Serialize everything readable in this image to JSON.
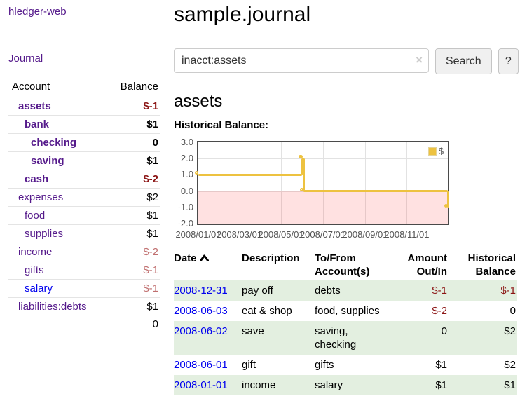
{
  "app": {
    "brand": "hledger-web"
  },
  "sidebar": {
    "journal_label": "Journal",
    "headers": {
      "account": "Account",
      "balance": "Balance"
    },
    "accounts": [
      {
        "name": "assets",
        "balance": "$-1",
        "level": 0,
        "bold": true,
        "neg": "strong",
        "link": "purple"
      },
      {
        "name": "bank",
        "balance": "$1",
        "level": 1,
        "bold": true,
        "neg": "none",
        "link": "purple"
      },
      {
        "name": "checking",
        "balance": "0",
        "level": 2,
        "bold": true,
        "neg": "none",
        "link": "purple"
      },
      {
        "name": "saving",
        "balance": "$1",
        "level": 2,
        "bold": true,
        "neg": "none",
        "link": "purple"
      },
      {
        "name": "cash",
        "balance": "$-2",
        "level": 1,
        "bold": true,
        "neg": "strong",
        "link": "purple"
      },
      {
        "name": "expenses",
        "balance": "$2",
        "level": 0,
        "bold": false,
        "neg": "none",
        "link": "purple"
      },
      {
        "name": "food",
        "balance": "$1",
        "level": 1,
        "bold": false,
        "neg": "none",
        "link": "purple"
      },
      {
        "name": "supplies",
        "balance": "$1",
        "level": 1,
        "bold": false,
        "neg": "none",
        "link": "purple"
      },
      {
        "name": "income",
        "balance": "$-2",
        "level": 0,
        "bold": false,
        "neg": "soft",
        "link": "purple"
      },
      {
        "name": "gifts",
        "balance": "$-1",
        "level": 1,
        "bold": false,
        "neg": "soft",
        "link": "purple"
      },
      {
        "name": "salary",
        "balance": "$-1",
        "level": 1,
        "bold": false,
        "neg": "soft",
        "link": "blue"
      },
      {
        "name": "liabilities:debts",
        "balance": "$1",
        "level": 0,
        "bold": false,
        "neg": "none",
        "link": "purple"
      }
    ],
    "total": "0"
  },
  "header": {
    "title": "sample.journal"
  },
  "search": {
    "value": "inacct:assets",
    "clear_icon": "×",
    "button_label": "Search",
    "help_label": "?"
  },
  "account_page": {
    "title": "assets",
    "chart_label": "Historical Balance:"
  },
  "chart_data": {
    "type": "line",
    "step": true,
    "title": "Historical Balance:",
    "series": [
      {
        "name": "$",
        "color": "#edc240",
        "points": [
          [
            "2008-01-01",
            1
          ],
          [
            "2008-06-01",
            2
          ],
          [
            "2008-06-02",
            2
          ],
          [
            "2008-06-03",
            0
          ],
          [
            "2008-12-31",
            -1
          ]
        ]
      }
    ],
    "xlim": [
      "2008-01-01",
      "2008-12-31"
    ],
    "ylim": [
      -2,
      3
    ],
    "x_tick_labels": [
      "2008/01/01",
      "2008/03/01",
      "2008/05/01",
      "2008/07/01",
      "2008/09/01",
      "2008/11/01"
    ],
    "y_tick_labels": [
      "3.0",
      "2.0",
      "1.0",
      "0.0",
      "-1.0",
      "-2.0"
    ],
    "y_tick_values": [
      3,
      2,
      1,
      0,
      -1,
      -2
    ],
    "grid": true,
    "legend_position": "top-right",
    "negative_region_color": "rgba(255,70,70,0.16)",
    "zero_line_color": "#960000"
  },
  "register": {
    "headers": {
      "date": "Date",
      "description": "Description",
      "accounts": "To/From Account(s)",
      "amount": "Amount Out/In",
      "balance": "Historical Balance"
    },
    "rows": [
      {
        "date": "2008-12-31",
        "description": "pay off",
        "accounts": "debts",
        "amount": "$-1",
        "balance": "$-1",
        "amount_neg": true,
        "balance_neg": true
      },
      {
        "date": "2008-06-03",
        "description": "eat & shop",
        "accounts": "food, supplies",
        "amount": "$-2",
        "balance": "0",
        "amount_neg": true,
        "balance_neg": false
      },
      {
        "date": "2008-06-02",
        "description": "save",
        "accounts": "saving, checking",
        "amount": "0",
        "balance": "$2",
        "amount_neg": false,
        "balance_neg": false
      },
      {
        "date": "2008-06-01",
        "description": "gift",
        "accounts": "gifts",
        "amount": "$1",
        "balance": "$2",
        "amount_neg": false,
        "balance_neg": false
      },
      {
        "date": "2008-01-01",
        "description": "income",
        "accounts": "salary",
        "amount": "$1",
        "balance": "$1",
        "amount_neg": false,
        "balance_neg": false
      }
    ]
  }
}
